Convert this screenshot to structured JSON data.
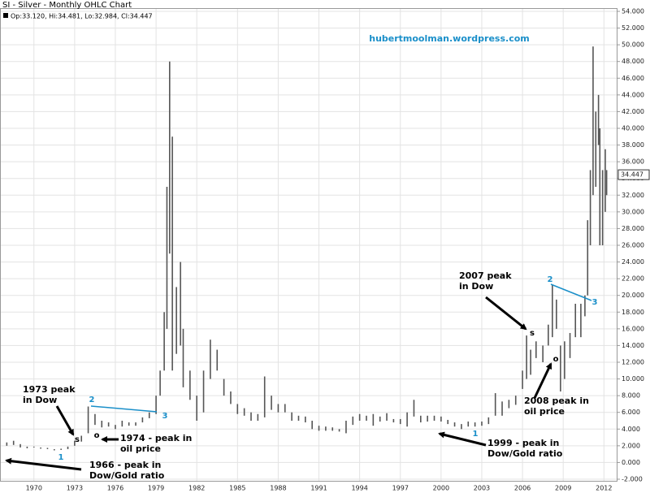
{
  "chart_data": {
    "type": "ohlc",
    "title": "SI - Silver - Monthly OHLC Chart",
    "subtitle": "Op:33.120, Hi:34.481, Lo:32.984, Cl:34.447",
    "watermark": "hubertmoolman.wordpress.com",
    "last_close": 34.447,
    "color": "#555555",
    "x": [
      1968.0,
      1968.5,
      1969.0,
      1969.5,
      1970.0,
      1970.5,
      1971.0,
      1971.5,
      1972.0,
      1972.5,
      1973.0,
      1973.5,
      1974.0,
      1974.5,
      1975.0,
      1975.5,
      1976.0,
      1976.5,
      1977.0,
      1977.5,
      1978.0,
      1978.5,
      1979.0,
      1979.3,
      1979.6,
      1979.8,
      1980.0,
      1980.2,
      1980.5,
      1980.8,
      1981.0,
      1981.5,
      1982.0,
      1982.5,
      1983.0,
      1983.5,
      1984.0,
      1984.5,
      1985.0,
      1985.5,
      1986.0,
      1986.5,
      1987.0,
      1987.5,
      1988.0,
      1988.5,
      1989.0,
      1989.5,
      1990.0,
      1990.5,
      1991.0,
      1991.5,
      1992.0,
      1992.5,
      1993.0,
      1993.5,
      1994.0,
      1994.5,
      1995.0,
      1995.5,
      1996.0,
      1996.5,
      1997.0,
      1997.5,
      1998.0,
      1998.5,
      1999.0,
      1999.5,
      2000.0,
      2000.5,
      2001.0,
      2001.5,
      2002.0,
      2002.5,
      2003.0,
      2003.5,
      2004.0,
      2004.5,
      2005.0,
      2005.5,
      2006.0,
      2006.3,
      2006.6,
      2007.0,
      2007.5,
      2007.9,
      2008.2,
      2008.5,
      2008.8,
      2009.1,
      2009.5,
      2009.9,
      2010.3,
      2010.6,
      2010.8,
      2011.0,
      2011.2,
      2011.4,
      2011.6,
      2011.7,
      2011.9,
      2012.1,
      2012.2
    ],
    "low": [
      2.0,
      2.1,
      1.8,
      1.7,
      1.8,
      1.65,
      1.6,
      1.45,
      1.5,
      1.6,
      2.0,
      2.5,
      3.5,
      4.5,
      4.2,
      4.3,
      4.0,
      4.3,
      4.4,
      4.4,
      4.8,
      5.3,
      5.8,
      8,
      11,
      16,
      25,
      11,
      13,
      14,
      9,
      7.5,
      5,
      6,
      10,
      11,
      8,
      7,
      5.8,
      5.6,
      5,
      5.0,
      5.4,
      6.3,
      6.0,
      6.0,
      5.0,
      5.0,
      4.8,
      4.0,
      3.8,
      3.8,
      3.8,
      3.7,
      3.5,
      4.5,
      5.0,
      5.0,
      4.4,
      4.9,
      5.0,
      4.8,
      4.6,
      4.3,
      5.5,
      4.8,
      4.9,
      5.0,
      4.9,
      4.6,
      4.3,
      4.0,
      4.3,
      4.3,
      4.4,
      4.6,
      5.6,
      5.6,
      6.5,
      6.9,
      8.8,
      10,
      10.5,
      12.5,
      12.0,
      14,
      15,
      16,
      8.5,
      10,
      12.5,
      15,
      15,
      17.5,
      20,
      26,
      32,
      33,
      38,
      26,
      26,
      30,
      32
    ],
    "high": [
      2.4,
      2.6,
      2.2,
      1.9,
      1.9,
      1.8,
      1.75,
      1.6,
      1.65,
      1.9,
      2.6,
      3.2,
      6.7,
      5.8,
      5.0,
      4.8,
      4.5,
      5.0,
      4.8,
      4.8,
      5.4,
      6.0,
      8.0,
      11,
      18,
      33,
      48,
      39,
      21,
      24,
      16,
      11,
      8,
      11,
      14.7,
      13.5,
      10,
      8.5,
      7,
      6.5,
      6,
      5.8,
      10.3,
      8,
      7,
      7.0,
      6.0,
      5.6,
      5.5,
      5.0,
      4.4,
      4.3,
      4.2,
      4.0,
      5.0,
      5.5,
      5.8,
      5.6,
      5.8,
      5.5,
      5.9,
      5.2,
      5.2,
      6.0,
      7.5,
      5.6,
      5.6,
      5.6,
      5.5,
      5.1,
      4.8,
      4.6,
      4.9,
      4.8,
      4.9,
      5.4,
      8.3,
      7.3,
      7.5,
      8.0,
      11,
      15.2,
      13.5,
      14.5,
      14.0,
      16.5,
      21.3,
      19.5,
      14,
      14.5,
      15.5,
      19,
      19,
      20,
      29,
      35,
      49.8,
      42,
      44,
      40,
      35,
      37.5,
      35
    ],
    "xlim": [
      1967.5,
      2013.0
    ],
    "xticks": [
      1970,
      1973,
      1976,
      1979,
      1982,
      1985,
      1988,
      1991,
      1994,
      1997,
      2000,
      2003,
      2006,
      2009,
      2012
    ],
    "ylim": [
      -2,
      54
    ],
    "yticks": [
      {
        "value": -2,
        "label": "-2.000"
      },
      {
        "value": 0,
        "label": "0.000"
      },
      {
        "value": 2,
        "label": "2.000"
      },
      {
        "value": 4,
        "label": "4.000"
      },
      {
        "value": 6,
        "label": "6.000"
      },
      {
        "value": 8,
        "label": "8.000"
      },
      {
        "value": 10,
        "label": "10.000"
      },
      {
        "value": 12,
        "label": "12.000"
      },
      {
        "value": 14,
        "label": "14.000"
      },
      {
        "value": 16,
        "label": "16.000"
      },
      {
        "value": 18,
        "label": "18.000"
      },
      {
        "value": 20,
        "label": "20.000"
      },
      {
        "value": 22,
        "label": "22.000"
      },
      {
        "value": 24,
        "label": "24.000"
      },
      {
        "value": 26,
        "label": "26.000"
      },
      {
        "value": 28,
        "label": "28.000"
      },
      {
        "value": 30,
        "label": "30.000"
      },
      {
        "value": 32,
        "label": "32.000"
      },
      {
        "value": 34,
        "label": "34.000"
      },
      {
        "value": 36,
        "label": "36.000"
      },
      {
        "value": 38,
        "label": "38.000"
      },
      {
        "value": 40,
        "label": "40.000"
      },
      {
        "value": 42,
        "label": "42.000"
      },
      {
        "value": 44,
        "label": "44.000"
      },
      {
        "value": 46,
        "label": "46.000"
      },
      {
        "value": 48,
        "label": "48.000"
      },
      {
        "value": 50,
        "label": "50.000"
      },
      {
        "value": 52,
        "label": "52.000"
      },
      {
        "value": 54,
        "label": "54.000"
      }
    ],
    "grid": true,
    "annotations": [
      [
        "1973 peak",
        "in Dow"
      ],
      [
        "1974 - peak in",
        "oil price"
      ],
      [
        "1966 - peak in",
        "Dow/Gold ratio"
      ],
      [
        "1999 - peak in",
        "Dow/Gold ratio"
      ],
      [
        "2007 peak",
        "in Dow"
      ],
      [
        "2008 peak in",
        "oil price"
      ]
    ],
    "markers": [
      "1",
      "2",
      "3",
      "1",
      "2",
      "3",
      "s",
      "o",
      "s",
      "o"
    ]
  }
}
